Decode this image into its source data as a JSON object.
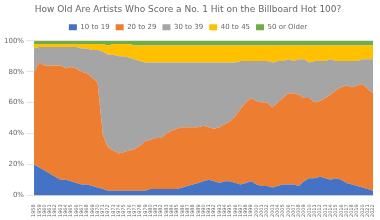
{
  "chart_data": {
    "type": "area",
    "title": "How Old Are Artists Who Score a No. 1 Hit on the Billboard Hot 100?",
    "stacked": true,
    "legend": "top",
    "grid": "y",
    "x": [
      1958,
      1959,
      1960,
      1961,
      1962,
      1963,
      1964,
      1965,
      1966,
      1967,
      1968,
      1969,
      1970,
      1971,
      1972,
      1973,
      1974,
      1975,
      1976,
      1977,
      1978,
      1979,
      1980,
      1981,
      1982,
      1983,
      1984,
      1985,
      1986,
      1987,
      1988,
      1989,
      1990,
      1991,
      1992,
      1993,
      1994,
      1995,
      1996,
      1997,
      1998,
      1999,
      2000,
      2001,
      2002,
      2003,
      2004,
      2005,
      2006,
      2007,
      2008,
      2009,
      2010,
      2011,
      2012,
      2013,
      2014,
      2015,
      2016,
      2017,
      2018,
      2019,
      2020,
      2021,
      2022
    ],
    "xlim": [
      1958,
      2022
    ],
    "xticks": [
      1958,
      1959,
      1960,
      1961,
      1962,
      1963,
      1964,
      1965,
      1966,
      1967,
      1968,
      1969,
      1970,
      1971,
      1972,
      1973,
      1974,
      1975,
      1976,
      1977,
      1978,
      1979,
      1980,
      1981,
      1982,
      1983,
      1984,
      1985,
      1986,
      1987,
      1988,
      1989,
      1990,
      1991,
      1992,
      1993,
      1994,
      1995,
      1996,
      1997,
      1998,
      1999,
      2000,
      2001,
      2002,
      2003,
      2004,
      2005,
      2006,
      2007,
      2008,
      2009,
      2010,
      2011,
      2012,
      2013,
      2014,
      2015,
      2016,
      2017,
      2018,
      2019,
      2020,
      2021,
      2022
    ],
    "ylim": [
      0,
      1
    ],
    "yticks": [
      {
        "value": 0,
        "label": "0%"
      },
      {
        "value": 0.2,
        "label": "20%"
      },
      {
        "value": 0.4,
        "label": "40%"
      },
      {
        "value": 0.6,
        "label": "60%"
      },
      {
        "value": 0.8,
        "label": "80%"
      },
      {
        "value": 1,
        "label": "100%"
      }
    ],
    "series": [
      {
        "name": "10 to 19",
        "color": "#4472C4",
        "values": [
          0.2,
          0.18,
          0.16,
          0.14,
          0.12,
          0.1,
          0.1,
          0.09,
          0.08,
          0.07,
          0.07,
          0.06,
          0.05,
          0.04,
          0.03,
          0.03,
          0.03,
          0.03,
          0.03,
          0.03,
          0.03,
          0.03,
          0.04,
          0.04,
          0.04,
          0.04,
          0.04,
          0.04,
          0.05,
          0.06,
          0.07,
          0.08,
          0.09,
          0.1,
          0.09,
          0.08,
          0.09,
          0.09,
          0.08,
          0.07,
          0.08,
          0.09,
          0.07,
          0.06,
          0.06,
          0.05,
          0.06,
          0.07,
          0.07,
          0.07,
          0.06,
          0.09,
          0.11,
          0.11,
          0.12,
          0.11,
          0.1,
          0.11,
          0.1,
          0.08,
          0.07,
          0.06,
          0.05,
          0.04,
          0.03
        ]
      },
      {
        "name": "20 to 29",
        "color": "#ED7D31",
        "values": [
          0.6,
          0.68,
          0.68,
          0.7,
          0.72,
          0.74,
          0.72,
          0.74,
          0.74,
          0.73,
          0.72,
          0.7,
          0.68,
          0.35,
          0.28,
          0.26,
          0.24,
          0.25,
          0.26,
          0.27,
          0.29,
          0.32,
          0.32,
          0.33,
          0.33,
          0.36,
          0.38,
          0.39,
          0.39,
          0.38,
          0.37,
          0.36,
          0.36,
          0.34,
          0.34,
          0.36,
          0.37,
          0.39,
          0.43,
          0.49,
          0.52,
          0.54,
          0.54,
          0.54,
          0.54,
          0.52,
          0.54,
          0.56,
          0.59,
          0.59,
          0.59,
          0.54,
          0.52,
          0.49,
          0.49,
          0.52,
          0.55,
          0.57,
          0.6,
          0.63,
          0.63,
          0.65,
          0.67,
          0.65,
          0.63
        ]
      },
      {
        "name": "30 to 39",
        "color": "#A5A5A5",
        "values": [
          0.15,
          0.1,
          0.12,
          0.12,
          0.12,
          0.12,
          0.14,
          0.13,
          0.14,
          0.15,
          0.16,
          0.18,
          0.21,
          0.54,
          0.6,
          0.62,
          0.63,
          0.62,
          0.6,
          0.58,
          0.55,
          0.51,
          0.5,
          0.49,
          0.49,
          0.46,
          0.44,
          0.43,
          0.42,
          0.42,
          0.42,
          0.42,
          0.41,
          0.42,
          0.43,
          0.42,
          0.4,
          0.38,
          0.35,
          0.31,
          0.27,
          0.24,
          0.26,
          0.27,
          0.27,
          0.29,
          0.27,
          0.24,
          0.22,
          0.21,
          0.23,
          0.25,
          0.23,
          0.27,
          0.26,
          0.24,
          0.23,
          0.19,
          0.17,
          0.16,
          0.17,
          0.16,
          0.16,
          0.19,
          0.22
        ]
      },
      {
        "name": "40 to 45",
        "color": "#FFC000",
        "values": [
          0.03,
          0.02,
          0.02,
          0.02,
          0.02,
          0.02,
          0.02,
          0.02,
          0.02,
          0.03,
          0.03,
          0.04,
          0.04,
          0.05,
          0.06,
          0.07,
          0.08,
          0.08,
          0.09,
          0.09,
          0.1,
          0.11,
          0.11,
          0.11,
          0.11,
          0.11,
          0.11,
          0.11,
          0.11,
          0.11,
          0.11,
          0.11,
          0.11,
          0.11,
          0.11,
          0.11,
          0.11,
          0.11,
          0.11,
          0.1,
          0.1,
          0.1,
          0.1,
          0.1,
          0.1,
          0.11,
          0.1,
          0.1,
          0.09,
          0.1,
          0.09,
          0.09,
          0.11,
          0.1,
          0.1,
          0.1,
          0.09,
          0.1,
          0.1,
          0.1,
          0.1,
          0.1,
          0.09,
          0.09,
          0.09
        ]
      },
      {
        "name": "50 or Older",
        "color": "#70AD47",
        "values": [
          0.02,
          0.02,
          0.02,
          0.02,
          0.02,
          0.02,
          0.02,
          0.02,
          0.02,
          0.02,
          0.02,
          0.02,
          0.02,
          0.02,
          0.03,
          0.02,
          0.02,
          0.02,
          0.02,
          0.03,
          0.03,
          0.03,
          0.03,
          0.03,
          0.03,
          0.03,
          0.03,
          0.03,
          0.03,
          0.03,
          0.03,
          0.03,
          0.03,
          0.03,
          0.03,
          0.03,
          0.03,
          0.03,
          0.03,
          0.03,
          0.03,
          0.03,
          0.03,
          0.03,
          0.03,
          0.03,
          0.03,
          0.03,
          0.03,
          0.03,
          0.03,
          0.03,
          0.03,
          0.03,
          0.03,
          0.03,
          0.03,
          0.03,
          0.03,
          0.03,
          0.03,
          0.03,
          0.03,
          0.03,
          0.03
        ]
      }
    ]
  }
}
